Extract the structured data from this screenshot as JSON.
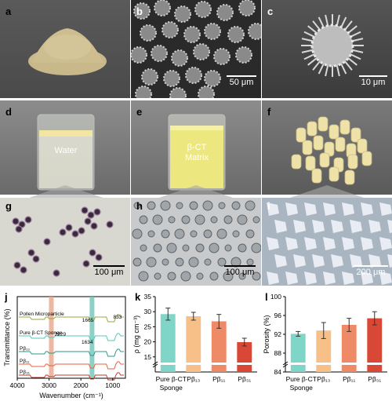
{
  "panels": {
    "a": {
      "label": "a"
    },
    "b": {
      "label": "b",
      "scale": "50 μm"
    },
    "c": {
      "label": "c",
      "scale": "10 μm"
    },
    "d": {
      "label": "d",
      "beaker_text": "Water"
    },
    "e": {
      "label": "e",
      "beaker_text_1": "β-CT",
      "beaker_text_2": "Matrix"
    },
    "f": {
      "label": "f"
    },
    "g": {
      "label": "g",
      "scale": "100 μm"
    },
    "h": {
      "label": "h",
      "scale": "100 μm"
    },
    "i": {
      "label": "i",
      "scale": "200 μm"
    },
    "j": {
      "label": "j"
    },
    "k": {
      "label": "k"
    },
    "l": {
      "label": "l"
    }
  },
  "chart_data": [
    {
      "type": "line",
      "panel": "j",
      "xlabel": "Wavenumber (cm⁻¹)",
      "ylabel": "Transmittance (%)",
      "xticks": [
        "4000",
        "3000",
        "2000",
        "1000"
      ],
      "xlim": [
        4000,
        600
      ],
      "series": [
        {
          "name": "Pollen Microparticle",
          "color": "#9aa641"
        },
        {
          "name": "Pure β-CT Sponge",
          "color": "#4ec8b8"
        },
        {
          "name": "Pβ₁₃",
          "color": "#2c9a8a"
        },
        {
          "name": "Pβ₁₁",
          "color": "#e8623a"
        },
        {
          "name": "Pβ₃₁",
          "color": "#c0392b"
        }
      ],
      "annotations": [
        "2929",
        "1665",
        "833",
        "1634"
      ],
      "highlight_bands": [
        {
          "center": 2929,
          "color": "#e8a58a"
        },
        {
          "center": 1650,
          "color": "#6fc4b8"
        }
      ]
    },
    {
      "type": "bar",
      "panel": "k",
      "categories": [
        "Pure β-CT Sponge",
        "Pβ₁₃",
        "Pβ₁₁",
        "Pβ₃₁"
      ],
      "values": [
        29.2,
        28.5,
        26.8,
        19.9
      ],
      "errors": [
        2.0,
        1.3,
        2.3,
        1.3
      ],
      "colors": [
        "#7fd6c8",
        "#f6c088",
        "#ee8a66",
        "#d94836"
      ],
      "ylabel": "ρ (mg cm⁻³)",
      "ylim": [
        10,
        35
      ],
      "yticks": [
        "15",
        "20",
        "25",
        "30",
        "35"
      ],
      "axis_break": true
    },
    {
      "type": "bar",
      "panel": "l",
      "categories": [
        "Pure β-CT Sponge",
        "Pβ₁₃",
        "Pβ₁₁",
        "Pβ₃₁"
      ],
      "values": [
        92.1,
        92.8,
        94.0,
        95.4
      ],
      "errors": [
        0.5,
        1.7,
        1.4,
        1.4
      ],
      "colors": [
        "#7fd6c8",
        "#f6c088",
        "#ee8a66",
        "#d94836"
      ],
      "ylabel": "Porosity (%)",
      "ylim": [
        84,
        100
      ],
      "yticks": [
        "84",
        "88",
        "92",
        "96",
        "100"
      ],
      "axis_break": true
    }
  ]
}
